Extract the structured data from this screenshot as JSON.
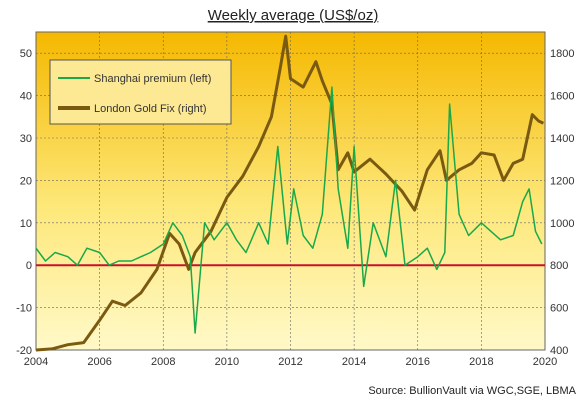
{
  "chart_data": {
    "type": "line",
    "title": "Weekly average (US$/oz)",
    "source": "Source: BullionVault via WGC,SGE, LBMA",
    "x_ticks": [
      "2004",
      "2006",
      "2008",
      "2010",
      "2012",
      "2014",
      "2016",
      "2018",
      "2020"
    ],
    "xlim": [
      2004,
      2020
    ],
    "y_left": {
      "ticks": [
        "-20",
        "-10",
        "0",
        "10",
        "20",
        "30",
        "40",
        "50"
      ],
      "ylim": [
        -20,
        55
      ]
    },
    "y_right": {
      "ticks": [
        "400",
        "600",
        "800",
        "1000",
        "1200",
        "1400",
        "1600",
        "1800"
      ],
      "ylim": [
        400,
        1900
      ]
    },
    "zero_line": 0,
    "grid": true,
    "legend_position": "top-left",
    "series": [
      {
        "name": "Shanghai premium (left)",
        "axis": "left",
        "color": "#1aa84a",
        "x": [
          2004.0,
          2004.3,
          2004.6,
          2005.0,
          2005.3,
          2005.6,
          2006.0,
          2006.3,
          2006.6,
          2007.0,
          2007.3,
          2007.6,
          2008.0,
          2008.3,
          2008.6,
          2008.85,
          2009.0,
          2009.3,
          2009.6,
          2010.0,
          2010.3,
          2010.6,
          2011.0,
          2011.3,
          2011.6,
          2011.9,
          2012.1,
          2012.4,
          2012.7,
          2013.0,
          2013.3,
          2013.5,
          2013.8,
          2014.0,
          2014.3,
          2014.6,
          2015.0,
          2015.3,
          2015.6,
          2016.0,
          2016.3,
          2016.6,
          2016.85,
          2017.0,
          2017.3,
          2017.6,
          2018.0,
          2018.3,
          2018.6,
          2019.0,
          2019.3,
          2019.5,
          2019.7,
          2019.9
        ],
        "y": [
          4,
          1,
          3,
          2,
          0,
          4,
          3,
          0,
          1,
          1,
          2,
          3,
          5,
          10,
          7,
          2,
          -16,
          10,
          6,
          10,
          6,
          3,
          10,
          5,
          28,
          5,
          18,
          7,
          4,
          12,
          42,
          18,
          4,
          28,
          -5,
          10,
          2,
          20,
          0,
          2,
          4,
          -1,
          3,
          38,
          12,
          7,
          10,
          8,
          6,
          7,
          15,
          18,
          8,
          5
        ]
      },
      {
        "name": "London Gold Fix (right)",
        "axis": "right",
        "color": "#7a5a10",
        "x": [
          2004.0,
          2004.5,
          2005.0,
          2005.5,
          2006.0,
          2006.4,
          2006.8,
          2007.3,
          2007.8,
          2008.2,
          2008.5,
          2008.8,
          2009.0,
          2009.5,
          2010.0,
          2010.5,
          2011.0,
          2011.4,
          2011.7,
          2011.85,
          2012.0,
          2012.4,
          2012.8,
          2013.0,
          2013.3,
          2013.5,
          2013.8,
          2014.0,
          2014.5,
          2015.0,
          2015.5,
          2015.9,
          2016.3,
          2016.7,
          2016.9,
          2017.3,
          2017.7,
          2018.0,
          2018.4,
          2018.7,
          2019.0,
          2019.3,
          2019.6,
          2019.8,
          2019.95
        ],
        "y": [
          400,
          405,
          425,
          435,
          540,
          630,
          610,
          670,
          780,
          950,
          900,
          780,
          860,
          960,
          1120,
          1220,
          1360,
          1500,
          1750,
          1880,
          1680,
          1640,
          1760,
          1670,
          1560,
          1250,
          1330,
          1240,
          1300,
          1230,
          1150,
          1060,
          1250,
          1340,
          1200,
          1250,
          1280,
          1330,
          1320,
          1200,
          1280,
          1300,
          1510,
          1480,
          1470
        ]
      }
    ]
  }
}
